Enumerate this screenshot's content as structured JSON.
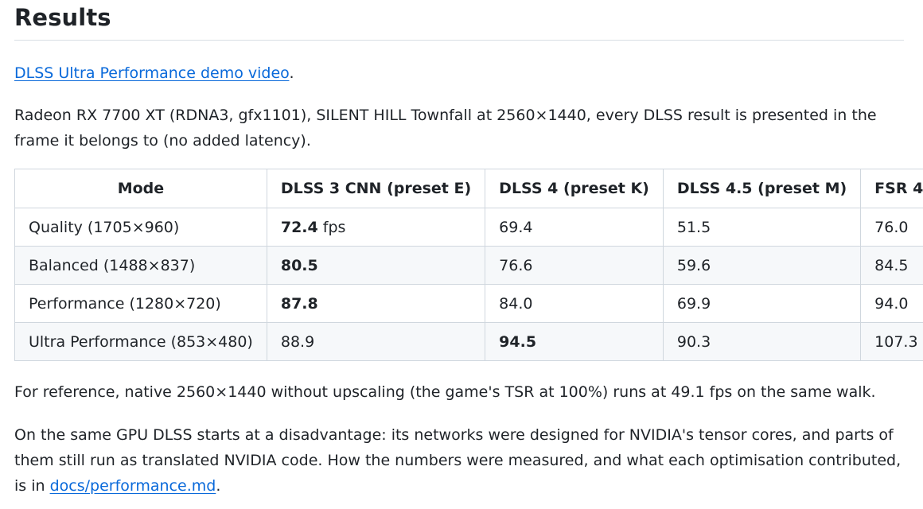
{
  "heading": "Results",
  "video": {
    "link_text": "DLSS Ultra Performance demo video",
    "trailing": "."
  },
  "intro": "Radeon RX 7700 XT (RDNA3, gfx1101), SILENT HILL Townfall at 2560×1440, every DLSS result is presented in the frame it belongs to (no added latency).",
  "table": {
    "headers": [
      "Mode",
      "DLSS 3 CNN (preset E)",
      "DLSS 4 (preset K)",
      "DLSS 4.5 (preset M)",
      "FSR 4"
    ],
    "rows": [
      {
        "mode": "Quality (1705×960)",
        "dlss3": "72.4",
        "dlss3_unit": " fps",
        "dlss4": "69.4",
        "dlss45": "51.5",
        "fsr4": "76.0"
      },
      {
        "mode": "Balanced (1488×837)",
        "dlss3": "80.5",
        "dlss3_unit": "",
        "dlss4": "76.6",
        "dlss45": "59.6",
        "fsr4": "84.5"
      },
      {
        "mode": "Performance (1280×720)",
        "dlss3": "87.8",
        "dlss3_unit": "",
        "dlss4": "84.0",
        "dlss45": "69.9",
        "fsr4": "94.0"
      },
      {
        "mode": "Ultra Performance (853×480)",
        "dlss3": "88.9",
        "dlss3_unit": "",
        "dlss4": "94.5",
        "dlss45": "90.3",
        "fsr4": "107.3"
      }
    ]
  },
  "reference": "For reference, native 2560×1440 without upscaling (the game's TSR at 100%) runs at 49.1 fps on the same walk.",
  "disadvantage": {
    "text": "On the same GPU DLSS starts at a disadvantage: its networks were designed for NVIDIA's tensor cores, and parts of them still run as translated NVIDIA code. How the numbers were measured, and what each optimisation contributed, is in ",
    "link_text": "docs/performance.md",
    "trailing": "."
  }
}
